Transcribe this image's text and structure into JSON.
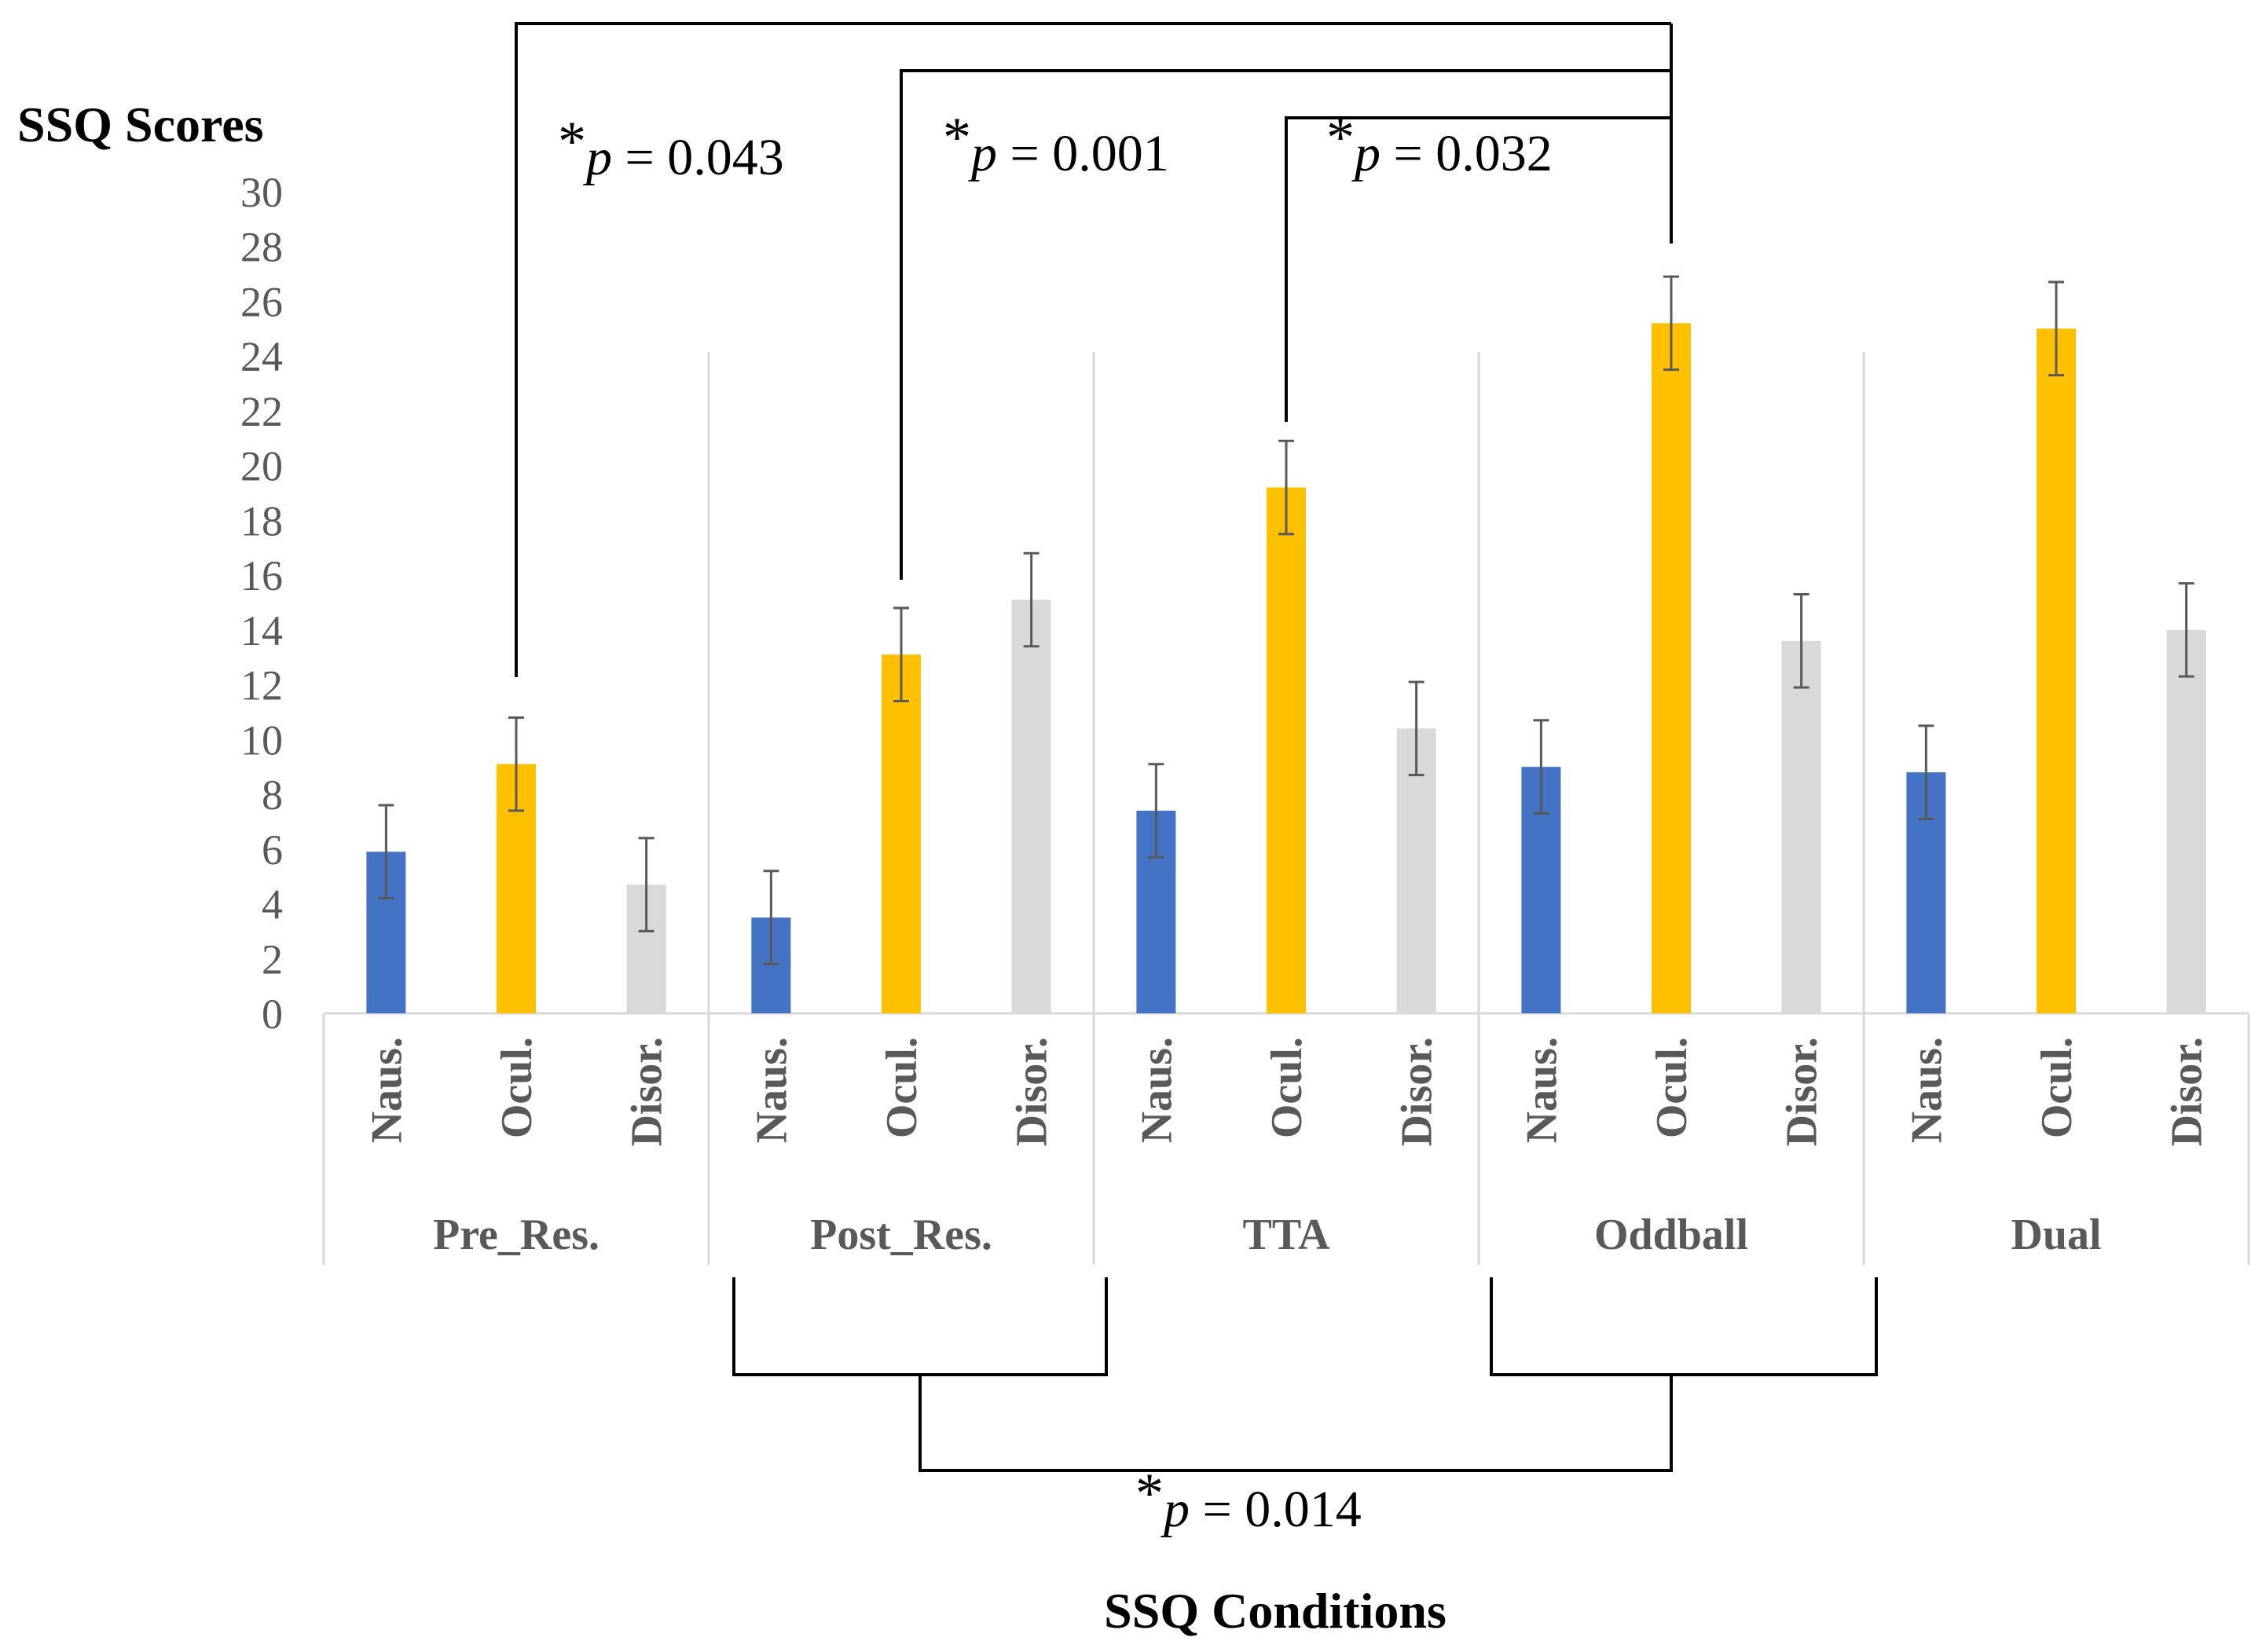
{
  "chart_data": {
    "type": "bar",
    "title": "",
    "ylabel": "SSQ Scores",
    "xlabel": "SSQ Conditions",
    "ylim": [
      0,
      30
    ],
    "yticks": [
      0,
      2,
      4,
      6,
      8,
      10,
      12,
      14,
      16,
      18,
      20,
      22,
      24,
      26,
      28,
      30
    ],
    "groups": [
      {
        "name": "Pre_Res.",
        "bars": [
          {
            "label": "Naus.",
            "value": 5.9,
            "error": 1.7
          },
          {
            "label": "Ocul.",
            "value": 9.1,
            "error": 1.7
          },
          {
            "label": "Disor.",
            "value": 4.7,
            "error": 1.7
          }
        ]
      },
      {
        "name": "Post_Res.",
        "bars": [
          {
            "label": "Naus.",
            "value": 3.5,
            "error": 1.7
          },
          {
            "label": "Ocul.",
            "value": 13.1,
            "error": 1.7
          },
          {
            "label": "Disor.",
            "value": 15.1,
            "error": 1.7
          }
        ]
      },
      {
        "name": "TTA",
        "bars": [
          {
            "label": "Naus.",
            "value": 7.4,
            "error": 1.7
          },
          {
            "label": "Ocul.",
            "value": 19.2,
            "error": 1.7
          },
          {
            "label": "Disor.",
            "value": 10.4,
            "error": 1.7
          }
        ]
      },
      {
        "name": "Oddball",
        "bars": [
          {
            "label": "Naus.",
            "value": 9.0,
            "error": 1.7
          },
          {
            "label": "Ocul.",
            "value": 25.2,
            "error": 1.7
          },
          {
            "label": "Disor.",
            "value": 13.6,
            "error": 1.7
          }
        ]
      },
      {
        "name": "Dual",
        "bars": [
          {
            "label": "Naus.",
            "value": 8.8,
            "error": 1.7
          },
          {
            "label": "Ocul.",
            "value": 25.0,
            "error": 1.7
          },
          {
            "label": "Disor.",
            "value": 14.0,
            "error": 1.7
          }
        ]
      }
    ],
    "series_colors": {
      "Naus.": "#4472C4",
      "Ocul.": "#FFC000",
      "Disor.": "#D9D9D9"
    },
    "annotations": [
      {
        "star": "*",
        "p": "p",
        "value": " = 0.043",
        "from": "Pre_Res. Ocul.",
        "to": "Oddball Ocul."
      },
      {
        "star": "*",
        "p": "p",
        "value": " = 0.001",
        "from": "Post_Res. Ocul.",
        "to": "Oddball Ocul."
      },
      {
        "star": "*",
        "p": "p",
        "value": " = 0.032",
        "from": "TTA Ocul.",
        "to": "Oddball Ocul."
      },
      {
        "star": "*",
        "p": "p",
        "value": " = 0.014",
        "from": "Post_Res.",
        "to": "Oddball"
      }
    ]
  }
}
